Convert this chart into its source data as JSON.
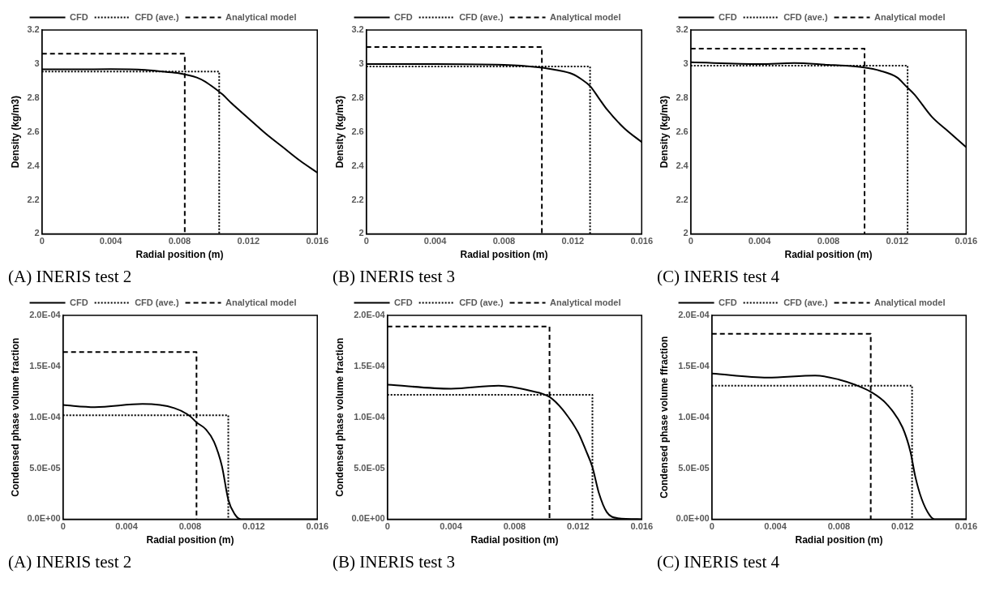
{
  "chart_data": [
    {
      "type": "line",
      "title": "(A) INERIS test 2",
      "xlabel": "Radial position (m)",
      "ylabel": "Density (kg/m3)",
      "xlim": [
        0,
        0.016
      ],
      "xticks": [
        0,
        0.004,
        0.008,
        0.012,
        0.016
      ],
      "ylim": [
        2,
        3.2
      ],
      "yticks": [
        2,
        2.2,
        2.4,
        2.6,
        2.8,
        3,
        3.2
      ],
      "legend": "top",
      "grid": false,
      "marker": "none",
      "series": [
        {
          "name": "CFD",
          "color": "#000000",
          "line_style": "solid",
          "x": [
            0,
            0.002,
            0.004,
            0.006,
            0.007,
            0.008,
            0.009,
            0.0095,
            0.01,
            0.0105,
            0.011,
            0.012,
            0.013,
            0.014,
            0.015,
            0.016
          ],
          "values": [
            2.968,
            2.968,
            2.97,
            2.965,
            2.955,
            2.945,
            2.92,
            2.895,
            2.86,
            2.82,
            2.77,
            2.68,
            2.59,
            2.51,
            2.43,
            2.36
          ]
        },
        {
          "name": "CFD (ave.)",
          "color": "#000000",
          "line_style": "dotted",
          "x": [
            0,
            0.0103,
            0.0103
          ],
          "values": [
            2.955,
            2.955,
            2
          ]
        },
        {
          "name": "Analytical model",
          "color": "#000000",
          "line_style": "dashed",
          "x": [
            0,
            0.0083,
            0.0083
          ],
          "values": [
            3.06,
            3.06,
            2
          ]
        }
      ]
    },
    {
      "type": "line",
      "title": "(B) INERIS test 3",
      "xlabel": "Radial position (m)",
      "ylabel": "Density (kg/m3)",
      "xlim": [
        0,
        0.016
      ],
      "xticks": [
        0,
        0.004,
        0.008,
        0.012,
        0.016
      ],
      "ylim": [
        2,
        3.2
      ],
      "yticks": [
        2,
        2.2,
        2.4,
        2.6,
        2.8,
        3,
        3.2
      ],
      "legend": "top",
      "grid": false,
      "marker": "none",
      "series": [
        {
          "name": "CFD",
          "color": "#000000",
          "line_style": "solid",
          "x": [
            0,
            0.004,
            0.008,
            0.009,
            0.01,
            0.011,
            0.012,
            0.0125,
            0.013,
            0.0135,
            0.014,
            0.015,
            0.016
          ],
          "values": [
            3.0,
            3.0,
            2.995,
            2.99,
            2.98,
            2.965,
            2.94,
            2.91,
            2.87,
            2.8,
            2.73,
            2.62,
            2.54
          ]
        },
        {
          "name": "CFD (ave.)",
          "color": "#000000",
          "line_style": "dotted",
          "x": [
            0,
            0.013,
            0.013
          ],
          "values": [
            2.985,
            2.985,
            2
          ]
        },
        {
          "name": "Analytical model",
          "color": "#000000",
          "line_style": "dashed",
          "x": [
            0,
            0.0102,
            0.0102
          ],
          "values": [
            3.1,
            3.1,
            2
          ]
        }
      ]
    },
    {
      "type": "line",
      "title": "(C) INERIS test 4",
      "xlabel": "Radial position (m)",
      "ylabel": "Density (kg/m3)",
      "xlim": [
        0,
        0.016
      ],
      "xticks": [
        0,
        0.004,
        0.008,
        0.012,
        0.016
      ],
      "ylim": [
        2,
        3.2
      ],
      "yticks": [
        2,
        2.2,
        2.4,
        2.6,
        2.8,
        3,
        3.2
      ],
      "legend": "top",
      "grid": false,
      "marker": "none",
      "series": [
        {
          "name": "CFD",
          "color": "#000000",
          "line_style": "solid",
          "x": [
            0,
            0.004,
            0.006,
            0.008,
            0.009,
            0.01,
            0.011,
            0.012,
            0.0125,
            0.013,
            0.014,
            0.015,
            0.016
          ],
          "values": [
            3.01,
            3.0,
            3.005,
            2.995,
            2.99,
            2.98,
            2.96,
            2.92,
            2.87,
            2.82,
            2.69,
            2.6,
            2.51
          ]
        },
        {
          "name": "CFD (ave.)",
          "color": "#000000",
          "line_style": "dotted",
          "x": [
            0,
            0.0126,
            0.0126
          ],
          "values": [
            2.99,
            2.99,
            2
          ]
        },
        {
          "name": "Analytical model",
          "color": "#000000",
          "line_style": "dashed",
          "x": [
            0,
            0.0101,
            0.0101
          ],
          "values": [
            3.09,
            3.09,
            2
          ]
        }
      ]
    },
    {
      "type": "line",
      "title": "(A) INERIS test 2",
      "xlabel": "Radial position (m)",
      "ylabel": "Condensed phase volume fraction",
      "xlim": [
        0,
        0.016
      ],
      "xticks": [
        0,
        0.004,
        0.008,
        0.012,
        0.016
      ],
      "ylim": [
        0,
        0.0002
      ],
      "yticks": [
        {
          "value": 0,
          "label": "0.0E+00"
        },
        {
          "value": 5e-05,
          "label": "5.0E-05"
        },
        {
          "value": 0.0001,
          "label": "1.0E-04"
        },
        {
          "value": 0.00015,
          "label": "1.5E-04"
        },
        {
          "value": 0.0002,
          "label": "2.0E-04"
        }
      ],
      "legend": "top",
      "grid": false,
      "marker": "none",
      "series": [
        {
          "name": "CFD",
          "color": "#000000",
          "line_style": "solid",
          "x": [
            0,
            0.002,
            0.005,
            0.007,
            0.008,
            0.0084,
            0.009,
            0.0095,
            0.01,
            0.0104,
            0.0108,
            0.0112,
            0.012,
            0.016
          ],
          "values": [
            0.000112,
            0.00011,
            0.000113,
            0.000109,
            0.000101,
            9.5e-05,
            8.8e-05,
            7.6e-05,
            5.2e-05,
            1.9e-05,
            5e-06,
            0,
            0,
            0
          ]
        },
        {
          "name": "CFD (ave.)",
          "color": "#000000",
          "line_style": "dotted",
          "x": [
            0,
            0.0104,
            0.0104
          ],
          "values": [
            0.000102,
            0.000102,
            0
          ]
        },
        {
          "name": "Analytical model",
          "color": "#000000",
          "line_style": "dashed",
          "x": [
            0,
            0.0084,
            0.0084
          ],
          "values": [
            0.000164,
            0.000164,
            0
          ]
        }
      ]
    },
    {
      "type": "line",
      "title": "(B) INERIS test 3",
      "xlabel": "Radial position (m)",
      "ylabel": "Condensed phase volume fraction",
      "xlim": [
        0,
        0.016
      ],
      "xticks": [
        0,
        0.004,
        0.008,
        0.012,
        0.016
      ],
      "ylim": [
        0,
        0.0002
      ],
      "yticks": [
        {
          "value": 0,
          "label": "0.0E+00"
        },
        {
          "value": 5e-05,
          "label": "5.0E-05"
        },
        {
          "value": 0.0001,
          "label": "1.0E-04"
        },
        {
          "value": 0.00015,
          "label": "1.5E-04"
        },
        {
          "value": 0.0002,
          "label": "2.0E-04"
        }
      ],
      "legend": "top",
      "grid": false,
      "marker": "none",
      "series": [
        {
          "name": "CFD",
          "color": "#000000",
          "line_style": "solid",
          "x": [
            0,
            0.004,
            0.007,
            0.009,
            0.0102,
            0.011,
            0.012,
            0.0125,
            0.0129,
            0.0133,
            0.0138,
            0.0145,
            0.016
          ],
          "values": [
            0.000132,
            0.000128,
            0.000131,
            0.000126,
            0.00012,
            0.000108,
            8.5e-05,
            6.7e-05,
            5.1e-05,
            2.6e-05,
            7e-06,
            1e-06,
            0
          ]
        },
        {
          "name": "CFD (ave.)",
          "color": "#000000",
          "line_style": "dotted",
          "x": [
            0,
            0.0129,
            0.0129
          ],
          "values": [
            0.000122,
            0.000122,
            0
          ]
        },
        {
          "name": "Analytical model",
          "color": "#000000",
          "line_style": "dashed",
          "x": [
            0,
            0.0102,
            0.0102
          ],
          "values": [
            0.000189,
            0.000189,
            0
          ]
        }
      ]
    },
    {
      "type": "line",
      "title": "(C) INERIS test 4",
      "xlabel": "Radial position (m)",
      "ylabel": "Condensed phase volume ffraction",
      "xlim": [
        0,
        0.016
      ],
      "xticks": [
        0,
        0.004,
        0.008,
        0.012,
        0.016
      ],
      "ylim": [
        0,
        0.0002
      ],
      "yticks": [
        {
          "value": 0,
          "label": "0.0E+00"
        },
        {
          "value": 5e-05,
          "label": "5.0E-05"
        },
        {
          "value": 0.0001,
          "label": "1.0E-04"
        },
        {
          "value": 0.00015,
          "label": "1.5E-04"
        },
        {
          "value": 0.0002,
          "label": "2.0E-04"
        }
      ],
      "legend": "top",
      "grid": false,
      "marker": "none",
      "series": [
        {
          "name": "CFD",
          "color": "#000000",
          "line_style": "solid",
          "x": [
            0,
            0.0035,
            0.0065,
            0.008,
            0.009,
            0.01,
            0.011,
            0.012,
            0.0125,
            0.0128,
            0.0132,
            0.0137,
            0.014,
            0.016
          ],
          "values": [
            0.000143,
            0.000139,
            0.000141,
            0.000137,
            0.000132,
            0.000125,
            0.000113,
            9e-05,
            6.6e-05,
            4.2e-05,
            2e-05,
            4e-06,
            0,
            0
          ]
        },
        {
          "name": "CFD (ave.)",
          "color": "#000000",
          "line_style": "dotted",
          "x": [
            0,
            0.0126,
            0.0126
          ],
          "values": [
            0.000131,
            0.000131,
            0
          ]
        },
        {
          "name": "Analytical model",
          "color": "#000000",
          "line_style": "dashed",
          "x": [
            0,
            0.01,
            0.01
          ],
          "values": [
            0.000182,
            0.000182,
            0
          ]
        }
      ]
    }
  ]
}
